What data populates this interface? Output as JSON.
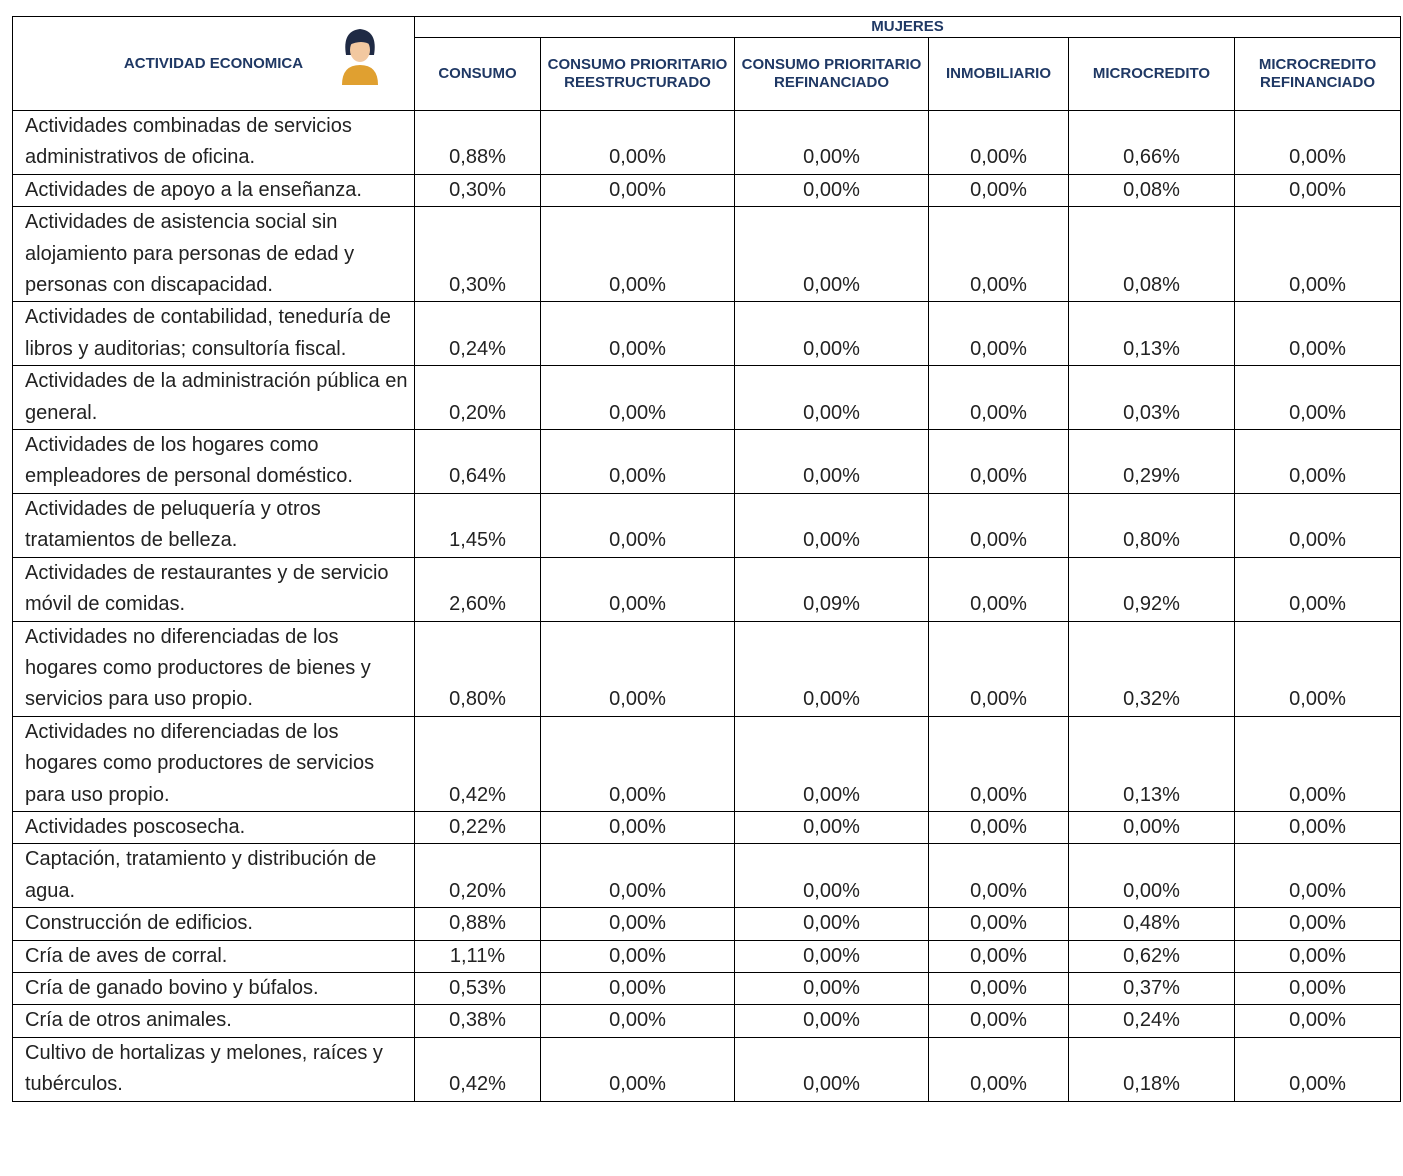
{
  "header": {
    "first": "ACTIVIDAD ECONOMICA",
    "group": "MUJERES",
    "columns": [
      "CONSUMO",
      "CONSUMO PRIORITARIO REESTRUCTURADO",
      "CONSUMO PRIORITARIO REFINANCIADO",
      "INMOBILIARIO",
      "MICROCREDITO",
      "MICROCREDITO REFINANCIADO"
    ]
  },
  "table": {
    "rows": [
      {
        "activity": "Actividades combinadas de servicios administrativos de oficina.",
        "values": [
          "0,88%",
          "0,00%",
          "0,00%",
          "0,00%",
          "0,66%",
          "0,00%"
        ]
      },
      {
        "activity": "Actividades de apoyo a la enseñanza.",
        "values": [
          "0,30%",
          "0,00%",
          "0,00%",
          "0,00%",
          "0,08%",
          "0,00%"
        ]
      },
      {
        "activity": "Actividades de asistencia social sin alojamiento para personas de edad y personas con discapacidad.",
        "values": [
          "0,30%",
          "0,00%",
          "0,00%",
          "0,00%",
          "0,08%",
          "0,00%"
        ]
      },
      {
        "activity": "Actividades de contabilidad, teneduría de libros y auditorias; consultoría fiscal.",
        "values": [
          "0,24%",
          "0,00%",
          "0,00%",
          "0,00%",
          "0,13%",
          "0,00%"
        ]
      },
      {
        "activity": "Actividades de la administración pública en general.",
        "values": [
          "0,20%",
          "0,00%",
          "0,00%",
          "0,00%",
          "0,03%",
          "0,00%"
        ]
      },
      {
        "activity": "Actividades de los hogares como empleadores de personal doméstico.",
        "values": [
          "0,64%",
          "0,00%",
          "0,00%",
          "0,00%",
          "0,29%",
          "0,00%"
        ]
      },
      {
        "activity": "Actividades de peluquería y otros tratamientos de belleza.",
        "values": [
          "1,45%",
          "0,00%",
          "0,00%",
          "0,00%",
          "0,80%",
          "0,00%"
        ]
      },
      {
        "activity": "Actividades de restaurantes y de servicio móvil de comidas.",
        "values": [
          "2,60%",
          "0,00%",
          "0,09%",
          "0,00%",
          "0,92%",
          "0,00%"
        ]
      },
      {
        "activity": "Actividades no diferenciadas de los hogares como productores de bienes y servicios para uso propio.",
        "values": [
          "0,80%",
          "0,00%",
          "0,00%",
          "0,00%",
          "0,32%",
          "0,00%"
        ]
      },
      {
        "activity": "Actividades no diferenciadas de los hogares como productores de servicios para uso propio.",
        "values": [
          "0,42%",
          "0,00%",
          "0,00%",
          "0,00%",
          "0,13%",
          "0,00%"
        ]
      },
      {
        "activity": "Actividades poscosecha.",
        "values": [
          "0,22%",
          "0,00%",
          "0,00%",
          "0,00%",
          "0,00%",
          "0,00%"
        ]
      },
      {
        "activity": "Captación, tratamiento y distribución de agua.",
        "values": [
          "0,20%",
          "0,00%",
          "0,00%",
          "0,00%",
          "0,00%",
          "0,00%"
        ]
      },
      {
        "activity": "Construcción de edificios.",
        "values": [
          "0,88%",
          "0,00%",
          "0,00%",
          "0,00%",
          "0,48%",
          "0,00%"
        ]
      },
      {
        "activity": "Cría de aves de corral.",
        "values": [
          "1,11%",
          "0,00%",
          "0,00%",
          "0,00%",
          "0,62%",
          "0,00%"
        ]
      },
      {
        "activity": "Cría de ganado bovino y búfalos.",
        "values": [
          "0,53%",
          "0,00%",
          "0,00%",
          "0,00%",
          "0,37%",
          "0,00%"
        ]
      },
      {
        "activity": "Cría de otros animales.",
        "values": [
          "0,38%",
          "0,00%",
          "0,00%",
          "0,00%",
          "0,24%",
          "0,00%"
        ]
      },
      {
        "activity": "Cultivo de hortalizas y melones, raíces y tubérculos.",
        "values": [
          "0,42%",
          "0,00%",
          "0,00%",
          "0,00%",
          "0,18%",
          "0,00%"
        ]
      }
    ]
  }
}
